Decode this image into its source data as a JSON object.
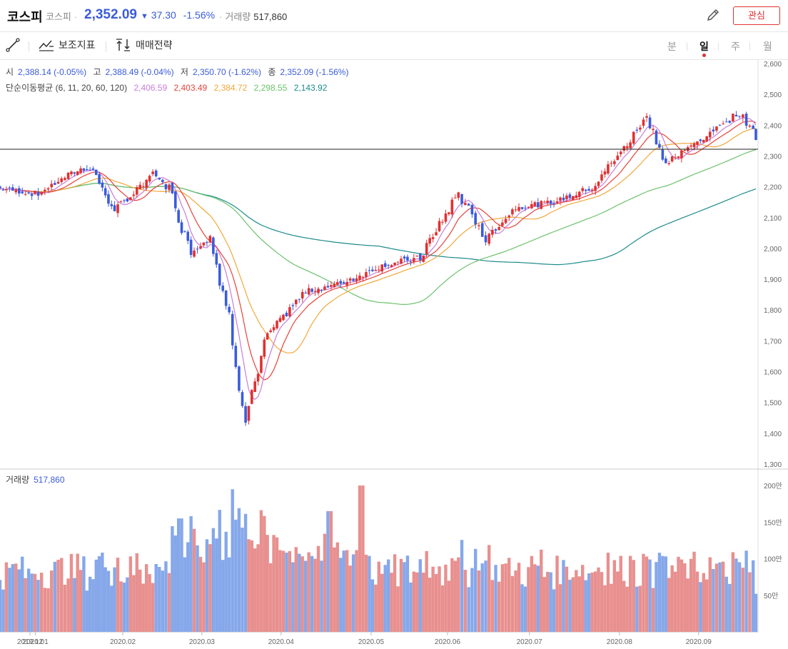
{
  "header": {
    "title": "코스피",
    "subtitle": "코스피",
    "price": "2,352.09",
    "change_arrow": "▼",
    "change": "37.30",
    "change_pct": "-1.56%",
    "volume_label": "거래량",
    "volume": "517,860",
    "edit_icon": "pencil-icon",
    "watch_label": "관심"
  },
  "toolbar": {
    "draw_icon": "line-draw-icon",
    "indicator_label": "보조지표",
    "strategy_label": "매매전략",
    "periods": [
      "분",
      "일",
      "주",
      "월"
    ],
    "active_period": "일"
  },
  "ohlc": {
    "open_label": "시",
    "open": "2,388.14 (-0.05%)",
    "high_label": "고",
    "high": "2,388.49 (-0.04%)",
    "low_label": "저",
    "low": "2,350.70 (-1.62%)",
    "close_label": "종",
    "close": "2,352.09 (-1.56%)"
  },
  "ma_legend": {
    "label": "단순이동평균 (6, 11, 20, 60, 120)",
    "ma6": "2,406.59",
    "ma11": "2,403.49",
    "ma20": "2,384.72",
    "ma60": "2,298.55",
    "ma120": "2,143.92"
  },
  "volume_panel": {
    "label": "거래량",
    "value": "517,860"
  },
  "colors": {
    "up": "#e03131",
    "down": "#3b5bdb",
    "vol_up": "#e8908f",
    "vol_down": "#86a8ea",
    "ma6": "#c77dda",
    "ma11": "#e8423a",
    "ma20": "#f0a83a",
    "ma60": "#6cc26c",
    "ma120": "#1e8a8a"
  },
  "chart_data": {
    "type": "candlestick",
    "title": "코스피",
    "price_axis": {
      "ticks": [
        "2,600",
        "2,500",
        "2,400",
        "2,300",
        "2,200",
        "2,100",
        "2,000",
        "1,900",
        "1,800",
        "1,700",
        "1,600",
        "1,500",
        "1,400",
        "1,300"
      ],
      "range": [
        1300,
        2600
      ]
    },
    "volume_axis": {
      "ticks": [
        "200만",
        "150만",
        "100만",
        "50만"
      ],
      "range_millions": [
        0,
        2.0
      ]
    },
    "x_ticks": [
      "2019.12",
      "2020.01",
      "2020.02",
      "2020.03",
      "2020.04",
      "2020.05",
      "2020.06",
      "2020.07",
      "2020.08",
      "2020.09"
    ],
    "reference_line": 2322,
    "close_keypoints": [
      {
        "date": "2019-12-20",
        "close": 2195
      },
      {
        "date": "2020-01-03",
        "close": 2176
      },
      {
        "date": "2020-01-14",
        "close": 2240
      },
      {
        "date": "2020-01-22",
        "close": 2267
      },
      {
        "date": "2020-01-31",
        "close": 2119
      },
      {
        "date": "2020-02-14",
        "close": 2243
      },
      {
        "date": "2020-02-20",
        "close": 2195
      },
      {
        "date": "2020-02-28",
        "close": 1987
      },
      {
        "date": "2020-03-06",
        "close": 2040
      },
      {
        "date": "2020-03-13",
        "close": 1771
      },
      {
        "date": "2020-03-19",
        "close": 1457
      },
      {
        "date": "2020-03-27",
        "close": 1717
      },
      {
        "date": "2020-04-10",
        "close": 1860
      },
      {
        "date": "2020-04-24",
        "close": 1889
      },
      {
        "date": "2020-05-08",
        "close": 1945
      },
      {
        "date": "2020-05-22",
        "close": 1970
      },
      {
        "date": "2020-06-05",
        "close": 2181
      },
      {
        "date": "2020-06-15",
        "close": 2030
      },
      {
        "date": "2020-06-26",
        "close": 2134
      },
      {
        "date": "2020-07-10",
        "close": 2150
      },
      {
        "date": "2020-07-24",
        "close": 2200
      },
      {
        "date": "2020-08-07",
        "close": 2351
      },
      {
        "date": "2020-08-13",
        "close": 2437
      },
      {
        "date": "2020-08-20",
        "close": 2274
      },
      {
        "date": "2020-09-04",
        "close": 2368
      },
      {
        "date": "2020-09-16",
        "close": 2443
      },
      {
        "date": "2020-09-21",
        "close": 2389
      },
      {
        "date": "2020-09-22",
        "close": 2352
      }
    ],
    "latest": {
      "open": 2388.14,
      "high": 2388.49,
      "low": 2350.7,
      "close": 2352.09,
      "volume": 517860
    },
    "moving_averages_latest": {
      "MA6": 2406.59,
      "MA11": 2403.49,
      "MA20": 2384.72,
      "MA60": 2298.55,
      "MA120": 2143.92
    }
  }
}
